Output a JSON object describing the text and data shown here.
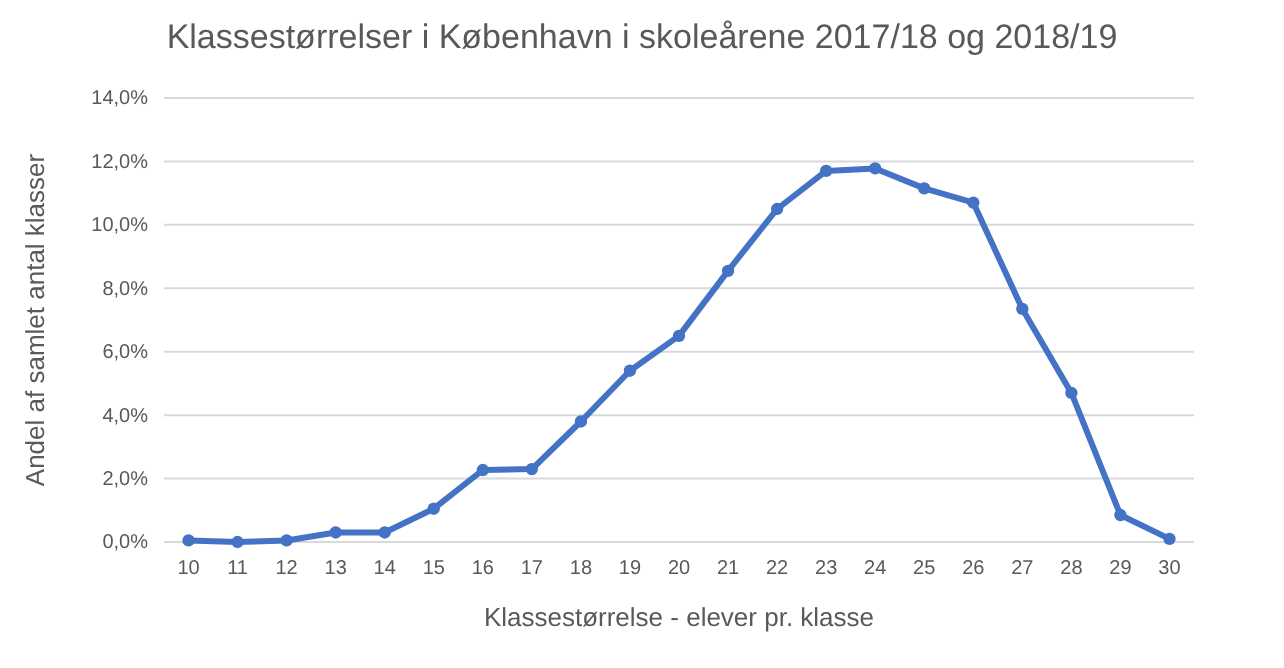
{
  "chart_data": {
    "type": "line",
    "title": "Klassestørrelser i København i skoleårene 2017/18 og 2018/19",
    "xlabel": "Klassestørrelse - elever pr. klasse",
    "ylabel": "Andel af samlet antal klasser",
    "categories": [
      "10",
      "11",
      "12",
      "13",
      "14",
      "15",
      "16",
      "17",
      "18",
      "19",
      "20",
      "21",
      "22",
      "23",
      "24",
      "25",
      "26",
      "27",
      "28",
      "29",
      "30"
    ],
    "series": [
      {
        "color": "#4472c4",
        "values": [
          0.05,
          0.0,
          0.05,
          0.3,
          0.3,
          1.05,
          2.27,
          2.3,
          3.8,
          5.4,
          6.5,
          8.55,
          10.5,
          11.7,
          11.78,
          11.15,
          10.7,
          7.35,
          4.7,
          0.85,
          0.1
        ]
      }
    ],
    "ylim": [
      0,
      14
    ],
    "yticks": [
      {
        "value": 0,
        "label": "0,0%"
      },
      {
        "value": 2,
        "label": "2,0%"
      },
      {
        "value": 4,
        "label": "4,0%"
      },
      {
        "value": 6,
        "label": "6,0%"
      },
      {
        "value": 8,
        "label": "8,0%"
      },
      {
        "value": 10,
        "label": "10,0%"
      },
      {
        "value": 12,
        "label": "12,0%"
      },
      {
        "value": 14,
        "label": "14,0%"
      }
    ],
    "grid": "y",
    "marker": "circle",
    "line_style": "solid"
  }
}
